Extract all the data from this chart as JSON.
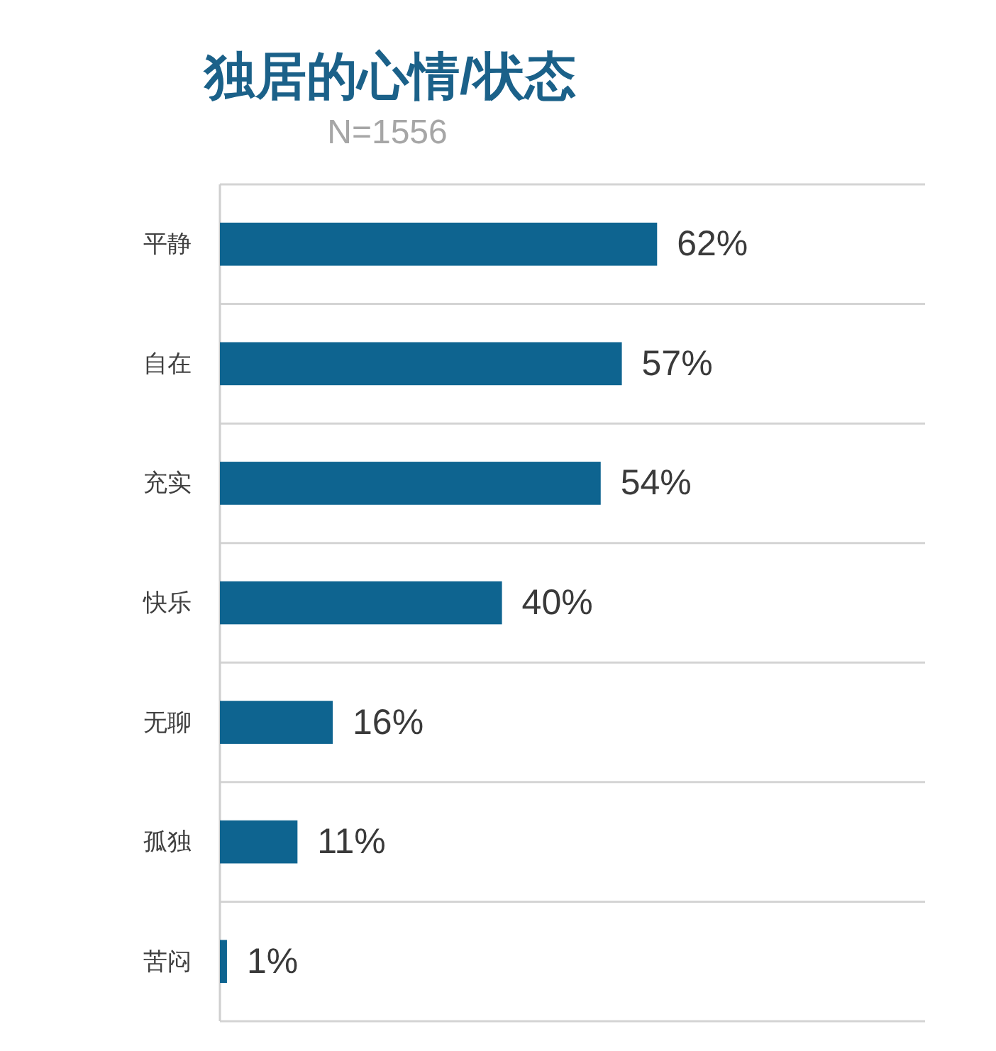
{
  "chart_data": {
    "type": "bar",
    "orientation": "horizontal",
    "title": "独居的心情/状态",
    "subtitle": "N=1556",
    "categories": [
      "平静",
      "自在",
      "充实",
      "快乐",
      "无聊",
      "孤独",
      "苦闷"
    ],
    "values": [
      62,
      57,
      54,
      40,
      16,
      11,
      1
    ],
    "value_labels": [
      "62%",
      "57%",
      "54%",
      "40%",
      "16%",
      "11%",
      "1%"
    ],
    "color": "#0e6490",
    "xlim": [
      0,
      100
    ],
    "grid": "y",
    "tick_labels": "y"
  }
}
